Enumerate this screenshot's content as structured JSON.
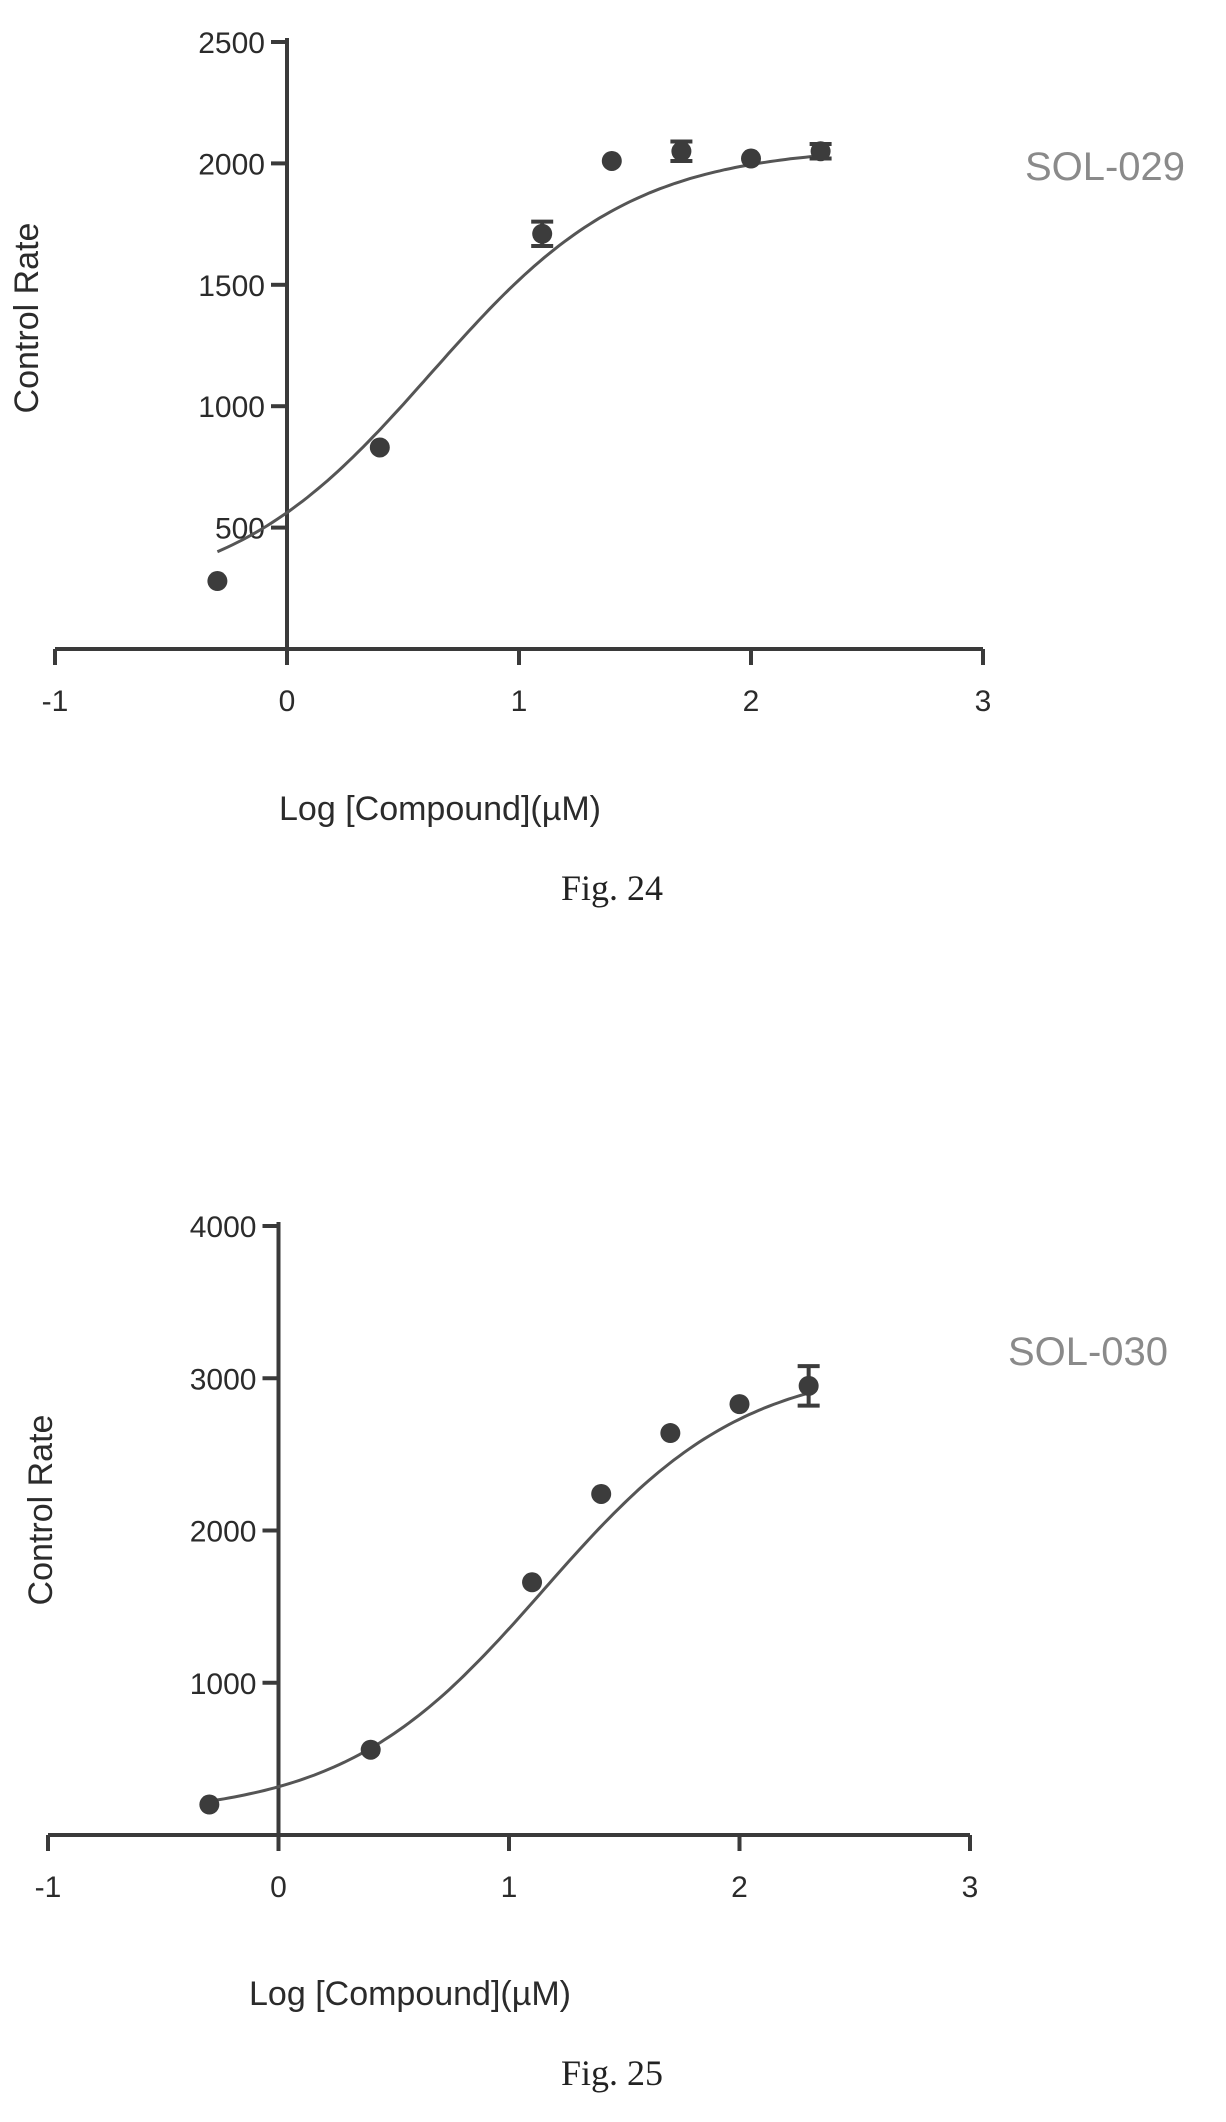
{
  "colors": {
    "axis": "#3a3a3a",
    "curve": "#555555",
    "point": "#3c3c3c",
    "series_label": "#8a8a8a"
  },
  "chart_data": [
    {
      "type": "scatter",
      "caption": "Fig. 24",
      "series_label": "SOL-029",
      "xlabel": "Log [Compound](µM)",
      "ylabel": "Control Rate",
      "xlim": [
        -1,
        3
      ],
      "ylim": [
        0,
        2500
      ],
      "x_ticks": [
        "-1",
        "0",
        "1",
        "2",
        "3"
      ],
      "y_ticks": [
        "500",
        "1000",
        "1500",
        "2000",
        "2500"
      ],
      "grid": false,
      "fit": {
        "bottom": 200,
        "top": 2070,
        "log_ec50": 0.62,
        "hill": 1.0
      },
      "points": [
        {
          "x": -0.3,
          "y": 280,
          "err": 0
        },
        {
          "x": 0.4,
          "y": 830,
          "err": 0
        },
        {
          "x": 1.1,
          "y": 1710,
          "err": 50
        },
        {
          "x": 1.4,
          "y": 2010,
          "err": 0
        },
        {
          "x": 1.7,
          "y": 2050,
          "err": 40
        },
        {
          "x": 2.0,
          "y": 2020,
          "err": 0
        },
        {
          "x": 2.3,
          "y": 2050,
          "err": 30
        }
      ]
    },
    {
      "type": "scatter",
      "caption": "Fig. 25",
      "series_label": "SOL-030",
      "xlabel": "Log [Compound](µM)",
      "ylabel": "Control Rate",
      "xlim": [
        -1,
        3
      ],
      "ylim": [
        0,
        4000
      ],
      "x_ticks": [
        "-1",
        "0",
        "1",
        "2",
        "3"
      ],
      "y_ticks": [
        "1000",
        "2000",
        "3000",
        "4000"
      ],
      "grid": false,
      "fit": {
        "bottom": 120,
        "top": 3100,
        "log_ec50": 1.15,
        "hill": 1.0
      },
      "points": [
        {
          "x": -0.3,
          "y": 200,
          "err": 0
        },
        {
          "x": 0.4,
          "y": 560,
          "err": 0
        },
        {
          "x": 1.1,
          "y": 1660,
          "err": 0
        },
        {
          "x": 1.4,
          "y": 2240,
          "err": 0
        },
        {
          "x": 1.7,
          "y": 2640,
          "err": 0
        },
        {
          "x": 2.0,
          "y": 2830,
          "err": 0
        },
        {
          "x": 2.3,
          "y": 2950,
          "err": 130
        }
      ]
    }
  ]
}
